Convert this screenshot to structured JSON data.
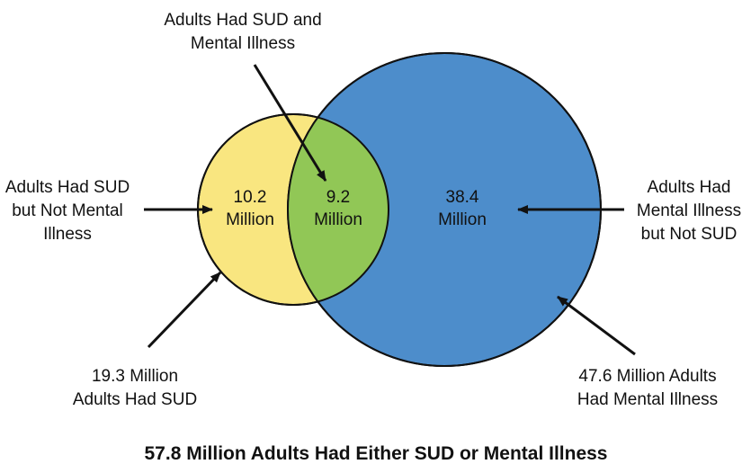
{
  "diagram": {
    "type": "venn",
    "colors": {
      "sud_only": "#f9e680",
      "overlap": "#91c756",
      "mental_only": "#4d8dcb",
      "outline": "#111111"
    },
    "regions": {
      "sud_only": {
        "number": "10.2",
        "unit": "Million"
      },
      "overlap": {
        "number": "9.2",
        "unit": "Million"
      },
      "mental_only": {
        "number": "38.4",
        "unit": "Million"
      }
    },
    "callouts": {
      "overlap": {
        "line1": "Adults Had SUD and",
        "line2": "Mental Illness"
      },
      "sud_only": {
        "line1": "Adults Had SUD",
        "line2": "but Not Mental",
        "line3": "Illness"
      },
      "mental_only": {
        "line1": "Adults Had",
        "line2": "Mental Illness",
        "line3": "but Not SUD"
      },
      "sud_total": {
        "line1": "19.3 Million",
        "line2": "Adults Had SUD"
      },
      "mental_total": {
        "line1": "47.6 Million Adults",
        "line2": "Had Mental Illness"
      }
    },
    "caption": "57.8 Million Adults Had Either SUD or Mental Illness"
  }
}
